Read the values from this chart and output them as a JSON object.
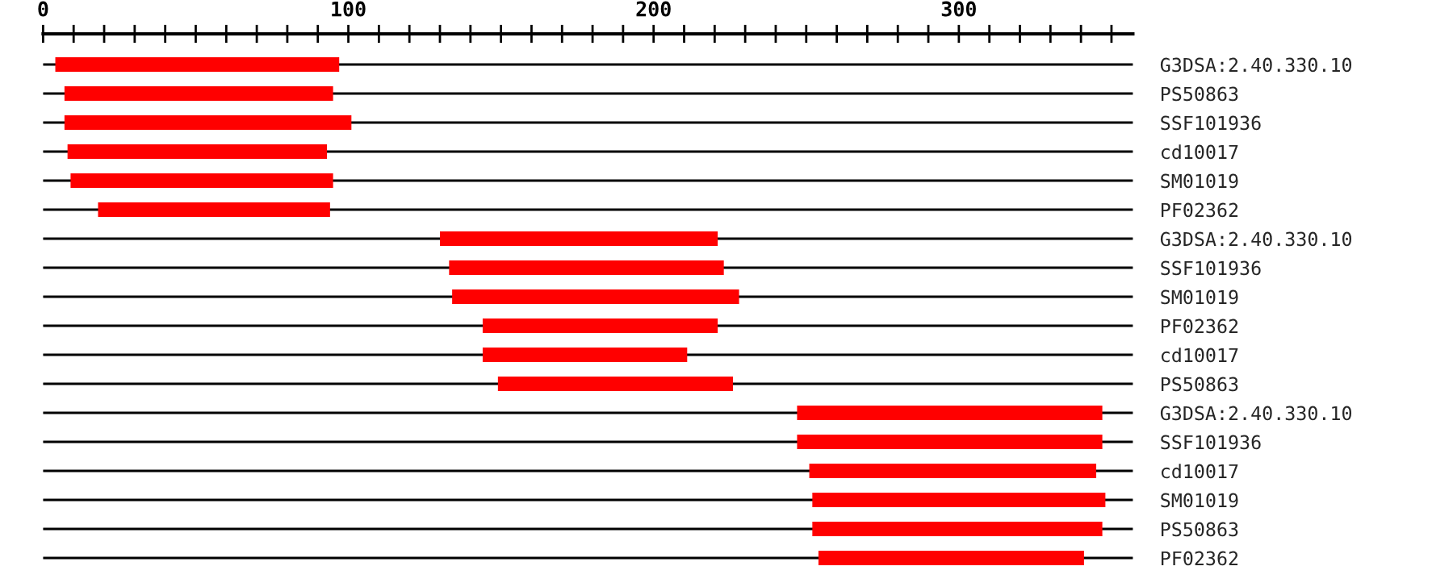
{
  "chart_data": {
    "type": "bar",
    "orientation": "horizontal",
    "categories": [
      "G3DSA:2.40.330.10",
      "PS50863",
      "SSF101936",
      "cd10017",
      "SM01019",
      "PF02362",
      "G3DSA:2.40.330.10",
      "SSF101936",
      "SM01019",
      "PF02362",
      "cd10017",
      "PS50863",
      "G3DSA:2.40.330.10",
      "SSF101936",
      "cd10017",
      "SM01019",
      "PS50863",
      "PF02362"
    ],
    "base": [
      4,
      7,
      7,
      8,
      9,
      18,
      130,
      133,
      134,
      144,
      144,
      149,
      247,
      247,
      251,
      252,
      252,
      254
    ],
    "values": [
      93,
      88,
      94,
      85,
      86,
      76,
      91,
      90,
      94,
      77,
      67,
      77,
      100,
      100,
      94,
      96,
      95,
      87
    ],
    "color": "#ff0000",
    "xlim": [
      0,
      357
    ],
    "xticks": [
      0,
      {
        "value": 10,
        "label": null
      },
      {
        "value": 20,
        "label": null
      },
      {
        "value": 30,
        "label": null
      },
      {
        "value": 40,
        "label": null
      },
      {
        "value": 50,
        "label": null
      },
      {
        "value": 60,
        "label": null
      },
      {
        "value": 70,
        "label": null
      },
      {
        "value": 80,
        "label": null
      },
      {
        "value": 90,
        "label": null
      },
      100,
      {
        "value": 110,
        "label": null
      },
      {
        "value": 120,
        "label": null
      },
      {
        "value": 130,
        "label": null
      },
      {
        "value": 140,
        "label": null
      },
      {
        "value": 150,
        "label": null
      },
      {
        "value": 160,
        "label": null
      },
      {
        "value": 170,
        "label": null
      },
      {
        "value": 180,
        "label": null
      },
      {
        "value": 190,
        "label": null
      },
      200,
      {
        "value": 210,
        "label": null
      },
      {
        "value": 220,
        "label": null
      },
      {
        "value": 230,
        "label": null
      },
      {
        "value": 240,
        "label": null
      },
      {
        "value": 250,
        "label": null
      },
      {
        "value": 260,
        "label": null
      },
      {
        "value": 270,
        "label": null
      },
      {
        "value": 280,
        "label": null
      },
      {
        "value": 290,
        "label": null
      },
      300,
      {
        "value": 310,
        "label": null
      },
      {
        "value": 320,
        "label": null
      },
      {
        "value": 330,
        "label": null
      },
      {
        "value": 340,
        "label": null
      },
      {
        "value": 350,
        "label": null
      }
    ],
    "grid": "y"
  }
}
